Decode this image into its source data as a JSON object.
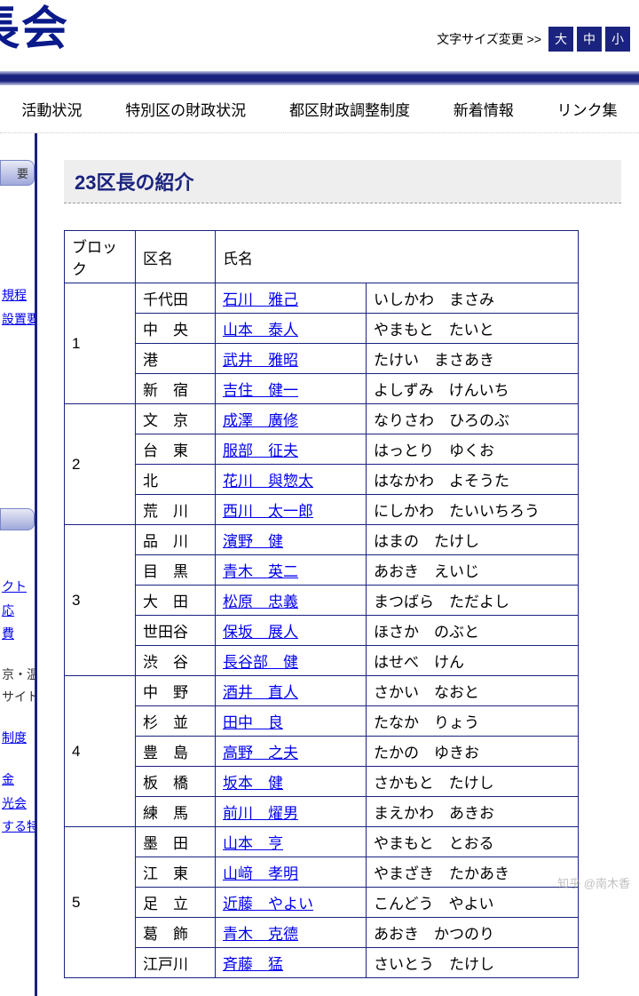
{
  "header": {
    "site_title": "長会",
    "font_size_label": "文字サイズ変更 >>",
    "font_buttons": [
      "大",
      "中",
      "小"
    ]
  },
  "nav": {
    "items": [
      "活動状況",
      "特別区の財政状況",
      "都区財政調整制度",
      "新着情報",
      "リンク集"
    ]
  },
  "sidebar": {
    "tab1": "要",
    "links1": [
      "規程",
      "設置要綱"
    ],
    "links2": [
      "クト",
      "応",
      "費"
    ],
    "text1": [
      "京・温",
      "サイト"
    ],
    "links3": [
      "制度"
    ],
    "links4": [
      "金",
      "光会",
      "する特別"
    ]
  },
  "main": {
    "title": "23区長の紹介",
    "headers": [
      "ブロック",
      "区名",
      "氏名"
    ],
    "blocks": [
      {
        "num": "1",
        "rows": [
          {
            "ward": "千代田",
            "name": "石川　雅己",
            "reading": "いしかわ　まさみ"
          },
          {
            "ward": "中　央",
            "name": "山本　泰人",
            "reading": "やまもと　たいと"
          },
          {
            "ward": "港",
            "name": "武井　雅昭",
            "reading": "たけい　まさあき"
          },
          {
            "ward": "新　宿",
            "name": "吉住　健一",
            "reading": "よしずみ　けんいち"
          }
        ]
      },
      {
        "num": "2",
        "rows": [
          {
            "ward": "文　京",
            "name": "成澤　廣修",
            "reading": "なりさわ　ひろのぶ"
          },
          {
            "ward": "台　東",
            "name": "服部　征夫",
            "reading": "はっとり　ゆくお"
          },
          {
            "ward": "北",
            "name": "花川　與惣太",
            "reading": "はなかわ　よそうた"
          },
          {
            "ward": "荒　川",
            "name": "西川　太一郎",
            "reading": "にしかわ　たいいちろう"
          }
        ]
      },
      {
        "num": "3",
        "rows": [
          {
            "ward": "品　川",
            "name": "濱野　健",
            "reading": "はまの　たけし"
          },
          {
            "ward": "目　黒",
            "name": "青木　英二",
            "reading": "あおき　えいじ"
          },
          {
            "ward": "大　田",
            "name": "松原　忠義",
            "reading": "まつばら　ただよし"
          },
          {
            "ward": "世田谷",
            "name": "保坂　展人",
            "reading": "ほさか　のぶと"
          },
          {
            "ward": "渋　谷",
            "name": "長谷部　健",
            "reading": "はせべ　けん"
          }
        ]
      },
      {
        "num": "4",
        "rows": [
          {
            "ward": "中　野",
            "name": "酒井　直人",
            "reading": "さかい　なおと"
          },
          {
            "ward": "杉　並",
            "name": "田中　良",
            "reading": "たなか　りょう"
          },
          {
            "ward": "豊　島",
            "name": "高野　之夫",
            "reading": "たかの　ゆきお"
          },
          {
            "ward": "板　橋",
            "name": "坂本　健",
            "reading": "さかもと　たけし"
          },
          {
            "ward": "練　馬",
            "name": "前川　燿男",
            "reading": "まえかわ　あきお"
          }
        ]
      },
      {
        "num": "5",
        "rows": [
          {
            "ward": "墨　田",
            "name": "山本　亨",
            "reading": "やまもと　とおる"
          },
          {
            "ward": "江　東",
            "name": "山﨑　孝明",
            "reading": "やまざき　たかあき"
          },
          {
            "ward": "足　立",
            "name": "近藤　やよい",
            "reading": "こんどう　やよい"
          },
          {
            "ward": "葛　飾",
            "name": "青木　克德",
            "reading": "あおき　かつのり"
          },
          {
            "ward": "江戸川",
            "name": "斉藤　猛",
            "reading": "さいとう　たけし"
          }
        ]
      }
    ]
  },
  "watermark": "知乎 @南木香",
  "colors": {
    "primary": "#1a237e",
    "link": "#0000ee",
    "title_bg": "#eeeeee"
  }
}
